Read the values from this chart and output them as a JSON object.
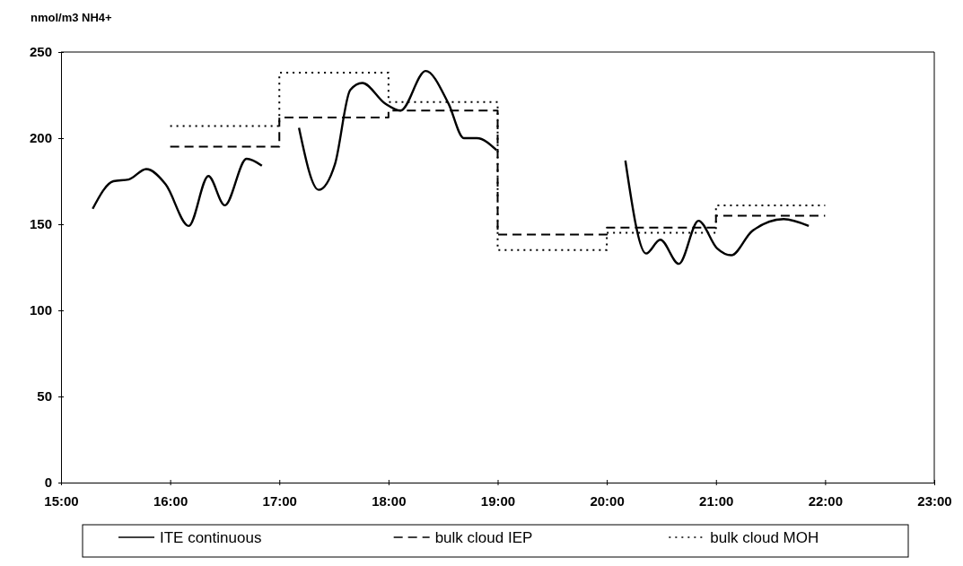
{
  "chart_data": {
    "type": "line",
    "ylabel": "nmol/m3 NH4+",
    "xlim": [
      15,
      23
    ],
    "ylim": [
      0,
      250
    ],
    "xticks": [
      {
        "value": 15,
        "label": "15:00"
      },
      {
        "value": 16,
        "label": "16:00"
      },
      {
        "value": 17,
        "label": "17:00"
      },
      {
        "value": 18,
        "label": "18:00"
      },
      {
        "value": 19,
        "label": "19:00"
      },
      {
        "value": 20,
        "label": "20:00"
      },
      {
        "value": 21,
        "label": "21:00"
      },
      {
        "value": 22,
        "label": "22:00"
      },
      {
        "value": 23,
        "label": "23:00"
      }
    ],
    "yticks": [
      0,
      50,
      100,
      150,
      200,
      250
    ],
    "grid": false,
    "legend": "bottom",
    "marker": "none",
    "series": [
      {
        "name": "ITE continuous",
        "line_style": "solid",
        "color": "#000000",
        "x": [
          15.29,
          15.48,
          15.62,
          15.78,
          15.96,
          16.17,
          16.35,
          16.5,
          16.7,
          16.84,
          17.0,
          17.18,
          17.36,
          17.51,
          17.65,
          17.76,
          17.97,
          18.11,
          18.34,
          18.55,
          18.69,
          18.81,
          18.99,
          19.5,
          20.17,
          20.36,
          20.49,
          20.66,
          20.84,
          21.01,
          21.14,
          21.33,
          21.62,
          21.85
        ],
        "values": [
          159,
          175,
          176,
          182,
          173,
          149,
          178,
          161,
          188,
          184,
          null,
          206,
          170,
          185,
          228,
          232,
          220,
          216,
          239,
          220,
          200,
          200,
          193,
          null,
          187,
          133,
          141,
          127,
          152,
          136,
          132,
          146,
          153,
          149
        ]
      },
      {
        "name": "bulk cloud IEP",
        "type": "step",
        "line_style": "dashed",
        "color": "#000000",
        "x": [
          16,
          17,
          18,
          19,
          20,
          21,
          22
        ],
        "values": [
          195,
          212,
          216,
          144,
          148,
          155,
          155
        ]
      },
      {
        "name": "bulk cloud MOH",
        "type": "step",
        "line_style": "dotted",
        "color": "#000000",
        "x": [
          16,
          17,
          18,
          19,
          20,
          21,
          22
        ],
        "values": [
          207,
          238,
          221,
          135,
          145,
          161,
          161
        ]
      }
    ]
  }
}
